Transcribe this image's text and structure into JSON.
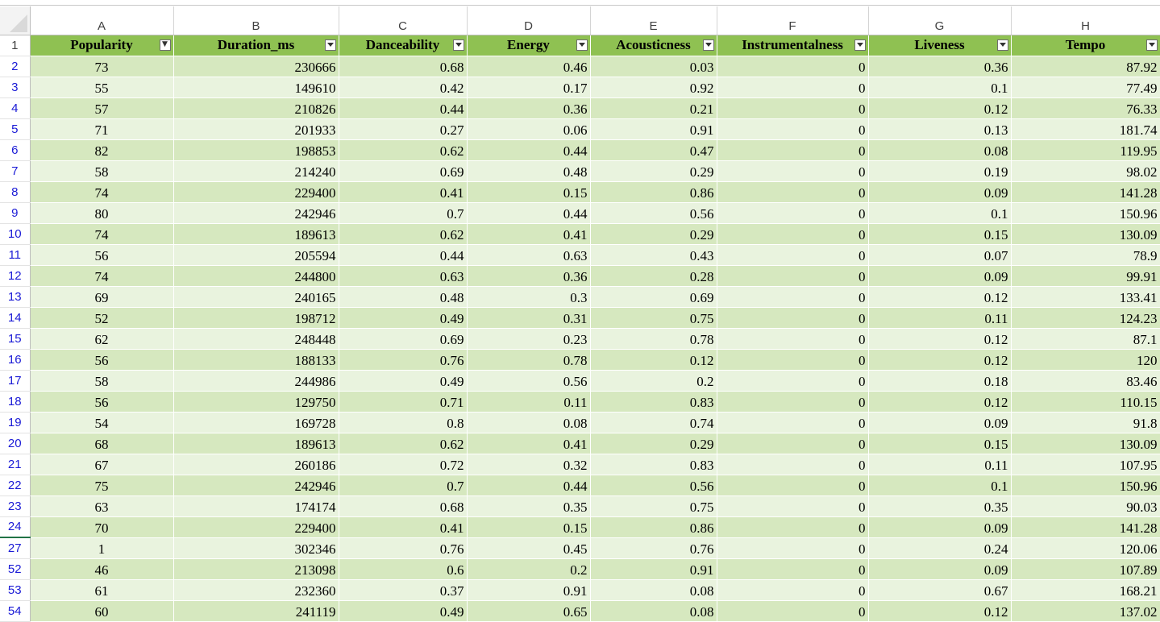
{
  "column_letters": [
    "A",
    "B",
    "C",
    "D",
    "E",
    "F",
    "G",
    "H"
  ],
  "header_row_number": "1",
  "headers": [
    "Popularity",
    "Duration_ms",
    "Danceability",
    "Energy",
    "Acousticness",
    "Instrumentalness",
    "Liveness",
    "Tempo"
  ],
  "filter_icons": [
    "funnel-filter-active",
    "dropdown",
    "dropdown",
    "dropdown",
    "dropdown",
    "dropdown",
    "dropdown",
    "dropdown"
  ],
  "row_numbers": [
    "2",
    "3",
    "4",
    "5",
    "6",
    "7",
    "8",
    "9",
    "10",
    "11",
    "12",
    "13",
    "14",
    "15",
    "16",
    "17",
    "18",
    "19",
    "20",
    "21",
    "22",
    "23",
    "24",
    "27",
    "52",
    "53",
    "54"
  ],
  "rows": [
    [
      "73",
      "230666",
      "0.68",
      "0.46",
      "0.03",
      "0",
      "0.36",
      "87.92"
    ],
    [
      "55",
      "149610",
      "0.42",
      "0.17",
      "0.92",
      "0",
      "0.1",
      "77.49"
    ],
    [
      "57",
      "210826",
      "0.44",
      "0.36",
      "0.21",
      "0",
      "0.12",
      "76.33"
    ],
    [
      "71",
      "201933",
      "0.27",
      "0.06",
      "0.91",
      "0",
      "0.13",
      "181.74"
    ],
    [
      "82",
      "198853",
      "0.62",
      "0.44",
      "0.47",
      "0",
      "0.08",
      "119.95"
    ],
    [
      "58",
      "214240",
      "0.69",
      "0.48",
      "0.29",
      "0",
      "0.19",
      "98.02"
    ],
    [
      "74",
      "229400",
      "0.41",
      "0.15",
      "0.86",
      "0",
      "0.09",
      "141.28"
    ],
    [
      "80",
      "242946",
      "0.7",
      "0.44",
      "0.56",
      "0",
      "0.1",
      "150.96"
    ],
    [
      "74",
      "189613",
      "0.62",
      "0.41",
      "0.29",
      "0",
      "0.15",
      "130.09"
    ],
    [
      "56",
      "205594",
      "0.44",
      "0.63",
      "0.43",
      "0",
      "0.07",
      "78.9"
    ],
    [
      "74",
      "244800",
      "0.63",
      "0.36",
      "0.28",
      "0",
      "0.09",
      "99.91"
    ],
    [
      "69",
      "240165",
      "0.48",
      "0.3",
      "0.69",
      "0",
      "0.12",
      "133.41"
    ],
    [
      "52",
      "198712",
      "0.49",
      "0.31",
      "0.75",
      "0",
      "0.11",
      "124.23"
    ],
    [
      "62",
      "248448",
      "0.69",
      "0.23",
      "0.78",
      "0",
      "0.12",
      "87.1"
    ],
    [
      "56",
      "188133",
      "0.76",
      "0.78",
      "0.12",
      "0",
      "0.12",
      "120"
    ],
    [
      "58",
      "244986",
      "0.49",
      "0.56",
      "0.2",
      "0",
      "0.18",
      "83.46"
    ],
    [
      "56",
      "129750",
      "0.71",
      "0.11",
      "0.83",
      "0",
      "0.12",
      "110.15"
    ],
    [
      "54",
      "169728",
      "0.8",
      "0.08",
      "0.74",
      "0",
      "0.09",
      "91.8"
    ],
    [
      "68",
      "189613",
      "0.62",
      "0.41",
      "0.29",
      "0",
      "0.15",
      "130.09"
    ],
    [
      "67",
      "260186",
      "0.72",
      "0.32",
      "0.83",
      "0",
      "0.11",
      "107.95"
    ],
    [
      "75",
      "242946",
      "0.7",
      "0.44",
      "0.56",
      "0",
      "0.1",
      "150.96"
    ],
    [
      "63",
      "174174",
      "0.68",
      "0.35",
      "0.75",
      "0",
      "0.35",
      "90.03"
    ],
    [
      "70",
      "229400",
      "0.41",
      "0.15",
      "0.86",
      "0",
      "0.09",
      "141.28"
    ],
    [
      "1",
      "302346",
      "0.76",
      "0.45",
      "0.76",
      "0",
      "0.24",
      "120.06"
    ],
    [
      "46",
      "213098",
      "0.6",
      "0.2",
      "0.91",
      "0",
      "0.09",
      "107.89"
    ],
    [
      "61",
      "232360",
      "0.37",
      "0.91",
      "0.08",
      "0",
      "0.67",
      "168.21"
    ],
    [
      "60",
      "241119",
      "0.49",
      "0.65",
      "0.08",
      "0",
      "0.12",
      "137.02"
    ]
  ],
  "colors": {
    "header_fill": "#8fc152",
    "band_dark": "#d6e8bf",
    "band_light": "#e9f3de",
    "row_number_filtered": "#1a1ad6"
  }
}
